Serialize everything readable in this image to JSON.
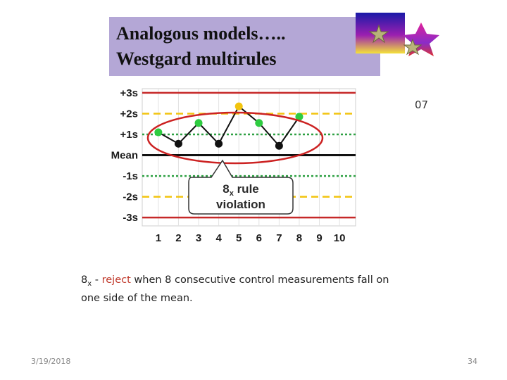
{
  "slide": {
    "title_line1": "Analogous models…..",
    "title_line2": "Westgard multirules",
    "code": "07",
    "caption_sym": "8",
    "caption_sub": "x",
    "caption_sep": " - ",
    "caption_reject": "reject",
    "caption_rest": " when 8 consecutive control measurements fall on one side of the mean.",
    "date": "3/19/2018",
    "page": "34"
  },
  "colors": {
    "title_bg": "#b4a7d6",
    "sd3_line": "#c62828",
    "sd2_line": "#f2c40f",
    "sd1_line": "#2ea043",
    "mean_line": "#111111",
    "violation_ellipse": "#cc2222",
    "point_green": "#2ecc40",
    "point_black": "#111111",
    "point_yellow": "#f2c40f"
  },
  "chart_data": {
    "type": "line",
    "y_tick_labels": [
      "+3s",
      "+2s",
      "+1s",
      "Mean",
      "-1s",
      "-2s",
      "-3s"
    ],
    "y_ticks": [
      3,
      2,
      1,
      0,
      -1,
      -2,
      -3
    ],
    "x_tick_labels": [
      "1",
      "2",
      "3",
      "4",
      "5",
      "6",
      "7",
      "8",
      "9",
      "10"
    ],
    "ylim": [
      -3.4,
      3.2
    ],
    "xlim": [
      0.2,
      10.8
    ],
    "grid": true,
    "series": [
      {
        "x": [
          1,
          2,
          3,
          4,
          5,
          6,
          7,
          8
        ],
        "y": [
          1.1,
          0.55,
          1.55,
          0.55,
          2.35,
          1.55,
          0.45,
          1.85
        ],
        "point_colors": [
          "green",
          "black",
          "green",
          "black",
          "yellow",
          "green",
          "black",
          "green"
        ]
      }
    ],
    "annotation": {
      "label_sym": "8",
      "label_sub": "x",
      "label_line1_rest": " rule",
      "label_line2": "violation"
    }
  }
}
